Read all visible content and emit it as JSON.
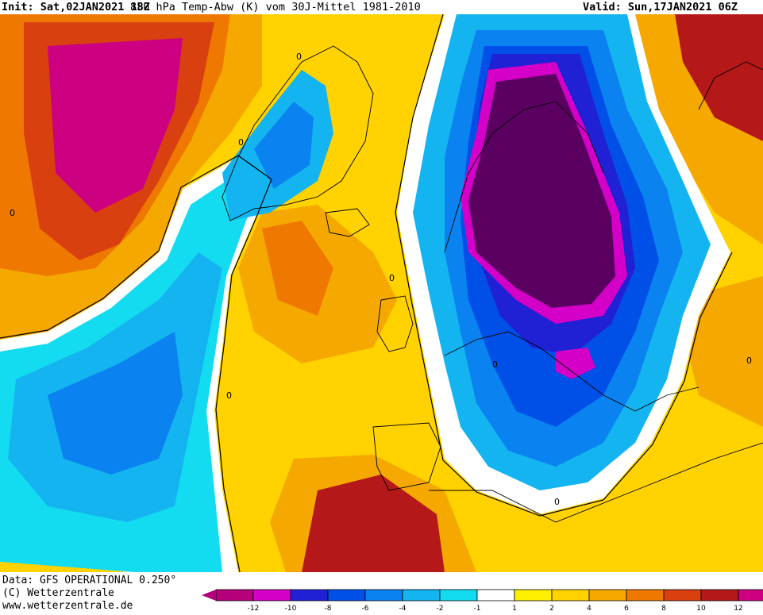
{
  "header": {
    "init": "Init: Sat,02JAN2021 18Z",
    "title": "850 hPa Temp-Abw (K) vom 30J-Mittel 1981-2010",
    "valid": "Valid: Sun,17JAN2021 06Z"
  },
  "footer": {
    "data_source": "Data: GFS OPERATIONAL 0.250°",
    "copyright": "(C) Wetterzentrale",
    "website": "www.wetterzentrale.de"
  },
  "contour_label": "0",
  "legend": {
    "ticks": [
      "-12",
      "-10",
      "-8",
      "-6",
      "-4",
      "-2",
      "-1",
      "1",
      "2",
      "4",
      "6",
      "8",
      "10",
      "12"
    ],
    "colors": [
      "#b4007a",
      "#d400c8",
      "#2020d4",
      "#0050e8",
      "#0a82f0",
      "#14b4f0",
      "#14dcf0",
      "#ffffff",
      "#fff000",
      "#ffd200",
      "#f5a800",
      "#ee7800",
      "#d84010",
      "#b41818",
      "#cc0080"
    ]
  }
}
